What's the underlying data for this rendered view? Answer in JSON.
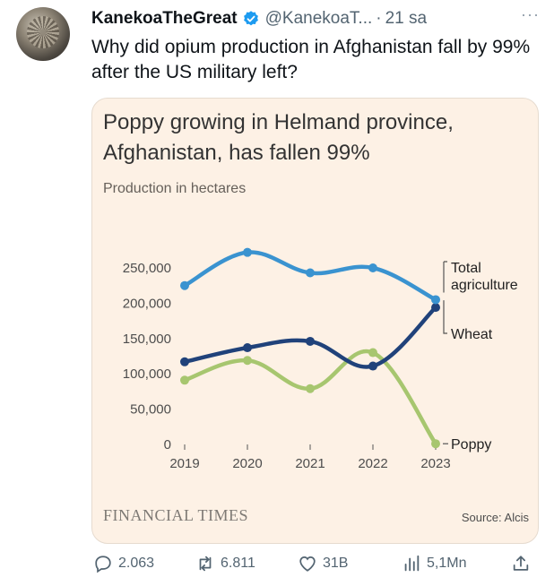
{
  "tweet": {
    "display_name": "KanekoaTheGreat",
    "handle": "@KanekoaT...",
    "separator": "·",
    "time": "21 sa",
    "more": "···",
    "text": "Why did opium production in Afghanistan fall by 99% after the US military left?"
  },
  "card": {
    "title": "Poppy growing in Helmand province, Afghanistan, has fallen 99%",
    "subtitle": "Production in hectares",
    "brand": "FINANCIAL TIMES",
    "source": "Source: Alcis"
  },
  "chart_data": {
    "type": "line",
    "title": "Poppy growing in Helmand province, Afghanistan, has fallen 99%",
    "subtitle": "Production in hectares",
    "x": [
      "2019",
      "2020",
      "2021",
      "2022",
      "2023"
    ],
    "ylim": [
      0,
      250000
    ],
    "y_ticks": [
      0,
      50000,
      100000,
      150000,
      200000,
      250000
    ],
    "y_tick_labels": [
      "0",
      "50,000",
      "100,000",
      "150,000",
      "200,000",
      "250,000"
    ],
    "grid": false,
    "series": [
      {
        "name": "Total agriculture",
        "color": "#3a93d0",
        "values": [
          225000,
          272000,
          243000,
          250000,
          205000
        ]
      },
      {
        "name": "Wheat",
        "color": "#20427a",
        "values": [
          117000,
          137000,
          146000,
          111000,
          194000
        ]
      },
      {
        "name": "Poppy",
        "color": "#a7c66f",
        "values": [
          91000,
          119000,
          79000,
          130000,
          1000
        ]
      }
    ],
    "legend_labels": {
      "total": [
        "Total",
        "agriculture"
      ],
      "wheat": "Wheat",
      "poppy": "Poppy"
    }
  },
  "actions": {
    "replies": "2.063",
    "reposts": "6.811",
    "likes": "31B",
    "views": "5,1Mn"
  },
  "colors": {
    "card_bg": "#fdf1e5",
    "accent": "#1d9bf0",
    "muted": "#536471"
  }
}
